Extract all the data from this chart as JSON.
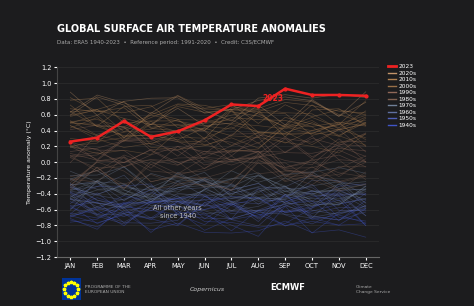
{
  "title": "GLOBAL SURFACE AIR TEMPERATURE ANOMALIES",
  "subtitle": "Data: ERA5 1940-2023  •  Reference period: 1991-2020  •  Credit: C3S/ECMWF",
  "ylabel": "Temperature anomaly (°C)",
  "months": [
    "JAN",
    "FEB",
    "MAR",
    "APR",
    "MAY",
    "JUN",
    "JUL",
    "AUG",
    "SEP",
    "OCT",
    "NOV",
    "DEC"
  ],
  "ylim": [
    -1.2,
    1.2
  ],
  "bg_color": "#1c1c1e",
  "line_2023": [
    0.26,
    0.31,
    0.52,
    0.32,
    0.39,
    0.53,
    0.73,
    0.71,
    0.93,
    0.85,
    0.85,
    0.84
  ],
  "annotation_color": "#ee2222",
  "decade_bases": {
    "1940s": -0.72,
    "1950s": -0.62,
    "1960s": -0.52,
    "1970s": -0.4,
    "1980s": -0.18,
    "1990s": 0.06,
    "2000s": 0.28,
    "2010s": 0.48,
    "2020s": 0.68
  },
  "decade_colors": {
    "2020s": "#c4956a",
    "2010s": "#b08050",
    "2000s": "#9a7048",
    "1990s": "#906858",
    "1980s": "#806050",
    "1970s": "#708098",
    "1960s": "#6070a0",
    "1950s": "#5060b8",
    "1940s": "#4055c8"
  },
  "legend_labels": [
    "2023",
    "2020s",
    "2010s",
    "2000s",
    "1990s",
    "1980s",
    "1970s",
    "1960s",
    "1950s",
    "1940s"
  ],
  "legend_colors": [
    "#ee2222",
    "#c4956a",
    "#b08050",
    "#9a7048",
    "#906858",
    "#806050",
    "#708098",
    "#6070a0",
    "#5060b8",
    "#4055c8"
  ]
}
